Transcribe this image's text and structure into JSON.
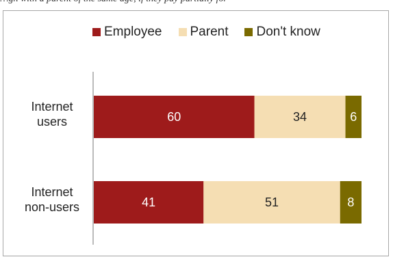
{
  "header": {
    "caption": "…gn with a parent of the same age, if they pay partially for"
  },
  "chart_data": {
    "type": "bar",
    "orientation": "horizontal",
    "stacked": true,
    "categories": [
      "Internet\nusers",
      "Internet\nnon-users"
    ],
    "series": [
      {
        "name": "Employee",
        "values": [
          60,
          41
        ],
        "color": "#9e1b1b",
        "label_color": "#ffffff"
      },
      {
        "name": "Parent",
        "values": [
          34,
          51
        ],
        "color": "#f5deb3",
        "label_color": "#222222"
      },
      {
        "name": "Don't know",
        "values": [
          6,
          8
        ],
        "color": "#7a6a00",
        "label_color": "#ffffff"
      }
    ],
    "xlim": [
      0,
      100
    ],
    "grid": false,
    "legend_position": "top"
  }
}
